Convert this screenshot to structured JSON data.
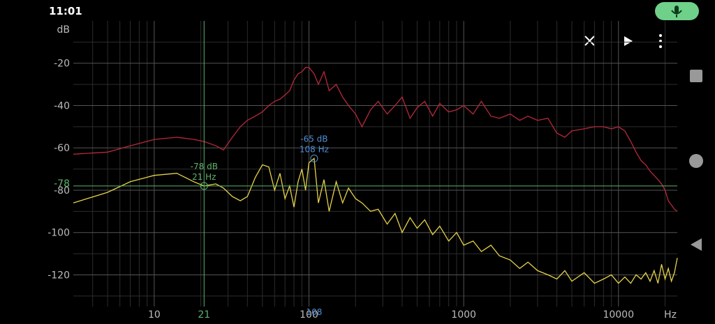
{
  "status_bar": {
    "time": "11:01"
  },
  "chart_data": {
    "type": "line",
    "y_unit": "dB",
    "x_unit": "Hz",
    "xscale": "log",
    "grid": true,
    "xlim": [
      3,
      24000
    ],
    "ylim": [
      -135,
      0
    ],
    "xticks": [
      10,
      100,
      1000,
      10000
    ],
    "x_minor_ticks": [
      4,
      5,
      6,
      7,
      8,
      9,
      20,
      30,
      40,
      50,
      60,
      70,
      80,
      90,
      200,
      300,
      400,
      500,
      600,
      700,
      800,
      900,
      2000,
      3000,
      4000,
      5000,
      6000,
      7000,
      8000,
      9000,
      20000
    ],
    "yticks": [
      -20,
      -40,
      -60,
      -80,
      -100,
      -120
    ],
    "y_minor_ticks": [
      -10,
      -30,
      -50,
      -70,
      -90,
      -110,
      -130
    ],
    "x": [
      3,
      5,
      7,
      10,
      14,
      18,
      21,
      25,
      28,
      32,
      36,
      40,
      45,
      50,
      55,
      60,
      65,
      70,
      75,
      80,
      85,
      90,
      95,
      100,
      108,
      115,
      125,
      135,
      150,
      165,
      180,
      200,
      220,
      250,
      280,
      320,
      360,
      400,
      450,
      500,
      560,
      630,
      700,
      800,
      900,
      1000,
      1150,
      1300,
      1500,
      1700,
      2000,
      2300,
      2600,
      3000,
      3500,
      4000,
      4500,
      5000,
      6000,
      7000,
      8000,
      9000,
      10000,
      11000,
      12000,
      13000,
      14000,
      15000,
      16000,
      17000,
      18000,
      19000,
      20000,
      21000,
      22000,
      23000,
      24000
    ],
    "series": [
      {
        "color": "#b8283c",
        "values": [
          -63,
          -62,
          -59,
          -56,
          -55,
          -56,
          -57,
          -59,
          -61,
          -55,
          -50,
          -47,
          -45,
          -43,
          -40,
          -38,
          -37,
          -35,
          -33,
          -28,
          -25,
          -24,
          -22,
          -22,
          -25,
          -30,
          -24,
          -33,
          -30,
          -36,
          -40,
          -44,
          -50,
          -42,
          -38,
          -44,
          -40,
          -36,
          -46,
          -41,
          -38,
          -45,
          -39,
          -43,
          -42,
          -40,
          -44,
          -38,
          -45,
          -46,
          -44,
          -47,
          -45,
          -47,
          -46,
          -53,
          -55,
          -52,
          -51,
          -50,
          -50,
          -51,
          -50,
          -52,
          -57,
          -62,
          -66,
          -68,
          -71,
          -73,
          -75,
          -77,
          -80,
          -85,
          -87,
          -89,
          -90
        ]
      },
      {
        "color": "#e6d24a",
        "values": [
          -86,
          -81,
          -76,
          -73,
          -72,
          -76,
          -78,
          -77,
          -79,
          -83,
          -85,
          -83,
          -74,
          -68,
          -69,
          -80,
          -72,
          -84,
          -78,
          -88,
          -76,
          -70,
          -80,
          -67,
          -65,
          -86,
          -75,
          -90,
          -76,
          -86,
          -79,
          -84,
          -86,
          -90,
          -89,
          -96,
          -91,
          -100,
          -93,
          -98,
          -94,
          -101,
          -97,
          -104,
          -100,
          -106,
          -104,
          -109,
          -106,
          -111,
          -113,
          -117,
          -114,
          -118,
          -120,
          -122,
          -118,
          -123,
          -119,
          -124,
          -122,
          -120,
          -124,
          -121,
          -124,
          -120,
          -122,
          -119,
          -123,
          -118,
          -124,
          -115,
          -122,
          -117,
          -123,
          -119,
          -112
        ]
      }
    ],
    "cursor": {
      "x": 21,
      "y": -78,
      "y_text": "-78 dB",
      "x_text": "21 Hz",
      "color": "#5db36c"
    },
    "marker": {
      "x": 108,
      "y": -65,
      "y_text": "-65 dB",
      "x_text": "108 Hz",
      "color": "#4f8fd6"
    }
  }
}
